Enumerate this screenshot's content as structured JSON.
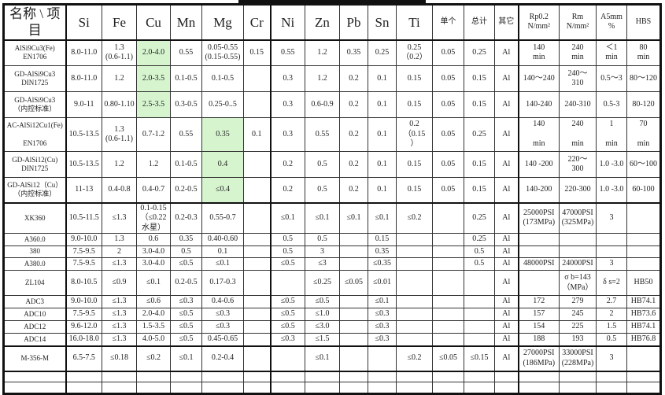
{
  "colors": {
    "highlight": "#d6f5cf",
    "border": "#111111"
  },
  "headers": [
    "名称 \\ 项目",
    "Si",
    "Fe",
    "Cu",
    "Mn",
    "Mg",
    "Cr",
    "Ni",
    "Zn",
    "Pb",
    "Sn",
    "Ti",
    "单个",
    "总计",
    "其它",
    "Rp0.2\nN/mm²",
    "Rm\nN/mm²",
    "A5mm\n%",
    "HBS"
  ],
  "rows": [
    {
      "cells": [
        "AlSi9Cu3(Fe)\nEN1706",
        "8.0-11.0",
        "1.3\n(0.6-1.1)",
        "2.0-4.0",
        "0.55",
        "0.05-0.55\n(0.15-0.55)",
        "0.15",
        "0.55",
        "1.2",
        "0.35",
        "0.25",
        "0.25\n（0.2）",
        "0.05",
        "0.25",
        "Al",
        "140\nmin",
        "240\nmin",
        "＜1\nmin",
        "80\nmin"
      ],
      "green": [
        3
      ]
    },
    {
      "cells": [
        "GD-AlSi9Cu3\nDIN1725",
        "8.0-11.0",
        "1.2",
        "2.0-3.5",
        "0.1-0.5",
        "0.1-0.5",
        "",
        "0.3",
        "1.2",
        "0.2",
        "0.1",
        "0.15",
        "0.05",
        "0.15",
        "Al",
        "140～240",
        "240～\n310",
        "0.5～3",
        "80～120"
      ],
      "green": [
        3
      ]
    },
    {
      "cells": [
        "GD-AlSi9Cu3\n（内控标准）",
        "9.0-11",
        "0.80-1.10",
        "2.5-3.5",
        "0.3-0.5",
        "0.25-0..5",
        "",
        "0.3",
        "0.6-0.9",
        "0.2",
        "0.1",
        "0.15",
        "0.05",
        "0.15",
        "Al",
        "140-240",
        "240-310",
        "0.5-3",
        "80-120"
      ],
      "green": [
        3
      ]
    },
    {
      "cells": [
        "AC-AlSi12Cu1(Fe)\n\nEN1706",
        "10.5-13.5",
        "1.3\n(0.6-1.1)",
        "0.7-1.2",
        "0.55",
        "0.35",
        "0.1",
        "0.3",
        "0.55",
        "0.2",
        "0.1",
        "0.2\n（0.15\n）",
        "0.05",
        "0.25",
        "Al",
        "140\n\nmin",
        "240\n\nmin",
        "1\n\nmin",
        "70\n\nmin"
      ],
      "green": [
        5
      ]
    },
    {
      "cells": [
        "GD-AlSi12(Cu)\nDIN1725",
        "10.5-13.5",
        "1.2",
        "1.2",
        "0.1-0.5",
        "0.4",
        "",
        "0.2",
        "0.5",
        "0.2",
        "0.1",
        "0.15",
        "0.05",
        "0.15",
        "Al",
        "140 -200",
        "220～\n300",
        "1.0 -3.0",
        "60～100"
      ],
      "green": [
        5
      ]
    },
    {
      "cells": [
        "GD-AlSi12（Cu）\n（内控标准）",
        "11-13",
        "0.4-0.8",
        "0.4-0.7",
        "0.2-0.5",
        "≤0.4",
        "",
        "0.2",
        "0.5",
        "0.2",
        "0.1",
        "0.15",
        "0.05",
        "0.15",
        "Al",
        "140-200",
        "220-300",
        "1.0 -3.0",
        "60-100"
      ],
      "green": [
        5
      ]
    },
    {
      "cells": [
        "XK360",
        "10.5-11.5",
        "≤1.3",
        "0.1-0.15\n（≤0.22\n水星）",
        "0.2-0.3",
        "0.55-0.7",
        "",
        "≤0.1",
        "≤0.1",
        "≤0.1",
        "≤0.1",
        "≤0.2",
        "",
        "0.25",
        "Al",
        "25000PSI\n(173MPa)",
        "47000PSI\n(325MPa)",
        "3",
        ""
      ],
      "green": []
    },
    {
      "cells": [
        "A360.0",
        "9.0-10.0",
        "1.3",
        "0.6",
        "0.35",
        "0.40-0.60",
        "",
        "0.5",
        "0.5",
        "",
        "0.15",
        "",
        "",
        "0.25",
        "Al",
        "",
        "",
        "",
        ""
      ],
      "green": []
    },
    {
      "cells": [
        "380",
        "7.5-9.5",
        "2",
        "3.0-4.0",
        "0.5",
        "0.1",
        "",
        "0.5",
        "3",
        "",
        "0.35",
        "",
        "",
        "0.5",
        "Al",
        "",
        "",
        "",
        ""
      ],
      "green": []
    },
    {
      "cells": [
        "A380.0",
        "7.5-9.5",
        "≤1.3",
        "3.0-4.0",
        "≤0.5",
        "≤0.1",
        "",
        "≤0.5",
        "≤3",
        "",
        "≤0.35",
        "",
        "",
        "0.5",
        "Al",
        "48000PSI",
        "24000PSI",
        "3",
        ""
      ],
      "green": []
    },
    {
      "cells": [
        "ZL104",
        "8.0-10.5",
        "≤0.9",
        "≤0.1",
        "0.2-0.5",
        "0.17-0.3",
        "",
        "",
        "≤0.25",
        "≤0.05",
        "≤0.01",
        "",
        "",
        "",
        "Al",
        "",
        "σ b=143\n（MPa）",
        "δ s=2",
        "HB50"
      ],
      "green": []
    },
    {
      "cells": [
        "ADC3",
        "9.0-10.0",
        "≤1.3",
        "≤0.6",
        "≤0.3",
        "0.4-0.6",
        "",
        "≤0.5",
        "≤0.5",
        "",
        "≤0.1",
        "",
        "",
        "",
        "Al",
        "172",
        "279",
        "2.7",
        "HB74.1"
      ],
      "green": []
    },
    {
      "cells": [
        "ADC10",
        "7.5-9.5",
        "≤1.3",
        "2.0-4.0",
        "≤0.5",
        "≤0.3",
        "",
        "≤0.5",
        "≤1.0",
        "",
        "≤0.3",
        "",
        "",
        "",
        "Al",
        "157",
        "245",
        "2",
        "HB73.6"
      ],
      "green": []
    },
    {
      "cells": [
        "ADC12",
        "9.6-12.0",
        "≤1.3",
        "1.5-3.5",
        "≤0.5",
        "≤0.3",
        "",
        "≤0.5",
        "≤3.0",
        "",
        "≤0.3",
        "",
        "",
        "",
        "Al",
        "154",
        "225",
        "1.5",
        "HB74.1"
      ],
      "green": []
    },
    {
      "cells": [
        "ADC14",
        "16.0-18.0",
        "≤1.3",
        "4.0-5.0",
        "≤0.5",
        "0.45-0.65",
        "",
        "≤0.3",
        "≤1.5",
        "",
        "≤0.3",
        "",
        "",
        "",
        "Al",
        "188",
        "193",
        "0.5",
        "HB76.8"
      ],
      "green": []
    },
    {
      "cells": [
        "M-356-M",
        "6.5-7.5",
        "≤0.18",
        "≤0.2",
        "≤0.1",
        "0.2-0.4",
        "",
        "",
        "≤0.1",
        "",
        "",
        "≤0.2",
        "≤0.05",
        "≤0.15",
        "Al",
        "27000PSI\n(186MPa)",
        "33000PSI\n(228MPa)",
        "3",
        ""
      ],
      "green": []
    },
    {
      "cells": [
        "",
        "",
        "",
        "",
        "",
        "",
        "",
        "",
        "",
        "",
        "",
        "",
        "",
        "",
        "",
        "",
        "",
        "",
        ""
      ],
      "green": []
    },
    {
      "cells": [
        "",
        "",
        "",
        "",
        "",
        "",
        "",
        "",
        "",
        "",
        "",
        "",
        "",
        "",
        "",
        "",
        "",
        "",
        ""
      ],
      "green": []
    }
  ]
}
